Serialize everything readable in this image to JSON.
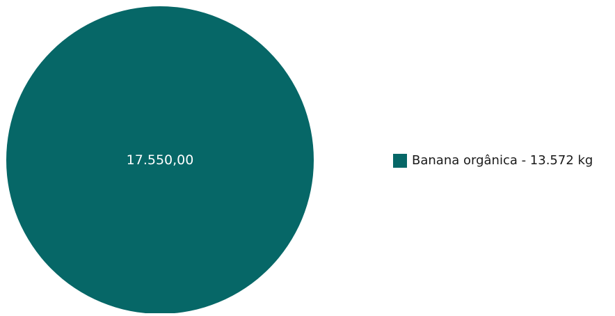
{
  "chart_data": {
    "type": "pie",
    "title": "",
    "slices": [
      {
        "label": "Banana orgânica - 13.572 kg",
        "value": 17550.0,
        "display_value": "17.550,00",
        "color": "#066767"
      }
    ],
    "legend": {
      "placement": "right",
      "entries": [
        {
          "label": "Banana orgânica - 13.572 kg",
          "color": "#066767"
        }
      ]
    }
  }
}
